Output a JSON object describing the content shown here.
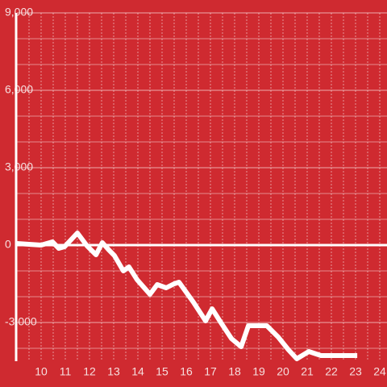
{
  "chart_data": {
    "type": "line",
    "color": "#ffffff",
    "x": [
      9.0,
      10.0,
      10.47,
      10.73,
      10.97,
      11.5,
      11.9,
      12.27,
      12.53,
      12.8,
      13.03,
      13.4,
      13.63,
      13.97,
      14.5,
      14.8,
      15.17,
      15.5,
      15.7,
      16.3,
      16.8,
      17.07,
      17.43,
      17.87,
      18.27,
      18.57,
      19.33,
      19.8,
      20.23,
      20.57,
      21.07,
      21.57,
      23.07
    ],
    "values": [
      62,
      0,
      125,
      -125,
      -62,
      469,
      -31,
      -375,
      94,
      -188,
      -406,
      -1000,
      -844,
      -1344,
      -1906,
      -1531,
      -1656,
      -1500,
      -1438,
      -2219,
      -2938,
      -2469,
      -3000,
      -3625,
      -3938,
      -3125,
      -3125,
      -3563,
      -4063,
      -4406,
      -4125,
      -4281,
      -4281
    ],
    "xlim": [
      9,
      24.3
    ],
    "ylim": [
      -4500,
      9000
    ],
    "xticks": [
      10,
      11,
      12,
      13,
      14,
      15,
      16,
      17,
      18,
      19,
      20,
      21,
      22,
      23,
      24
    ],
    "xminorticks": [
      9.5,
      10.5,
      11.5,
      12.5,
      13.5,
      14.5,
      15.5,
      16.5,
      17.5,
      18.5,
      19.5,
      20.5,
      21.5,
      22.5,
      23.5
    ],
    "yticks": [
      {
        "value": 9000,
        "label": "9,000"
      },
      {
        "value": 6000,
        "label": "6,000"
      },
      {
        "value": 3000,
        "label": "3,000"
      },
      0,
      {
        "value": -3000,
        "label": "-3,000"
      }
    ],
    "yminorticks": [
      8000,
      7000,
      5000,
      4000,
      2000,
      1000,
      -1000,
      -2000,
      -4000
    ],
    "grid": true
  }
}
